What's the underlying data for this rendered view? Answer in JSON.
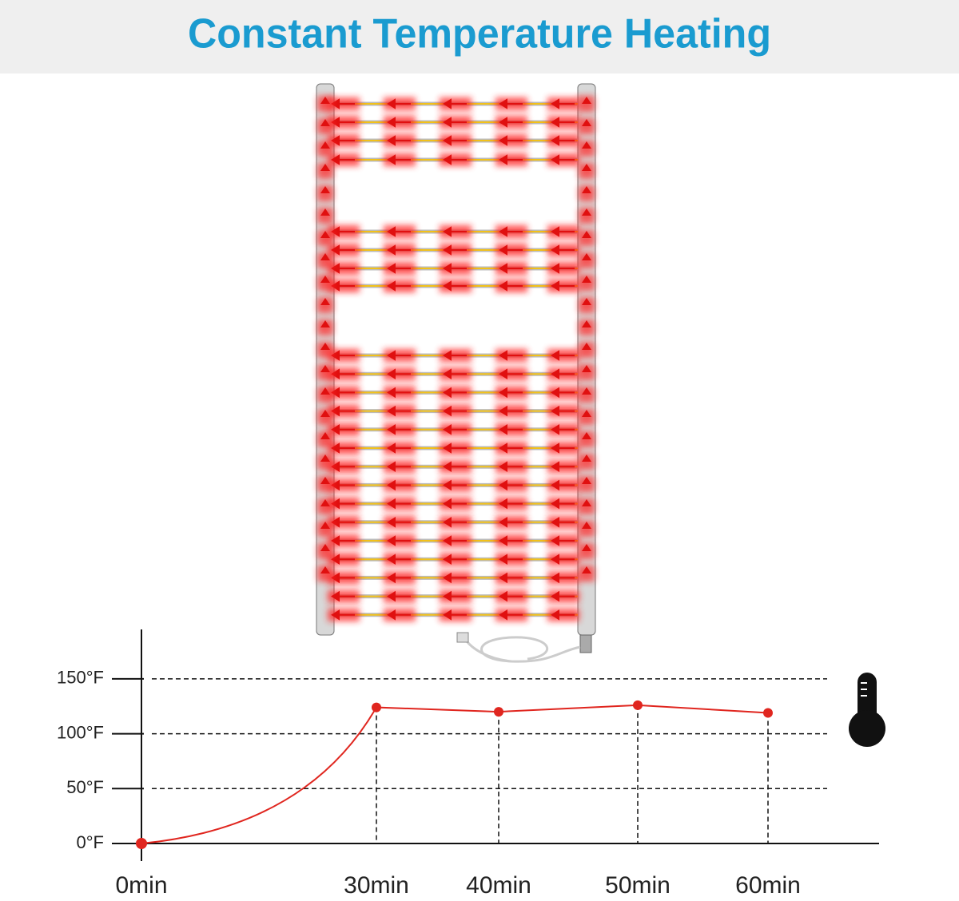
{
  "chart_data": {
    "type": "line",
    "title": "Constant Temperature Heating",
    "categories": [
      "0min",
      "30min",
      "40min",
      "50min",
      "60min"
    ],
    "values": [
      0,
      124,
      120,
      126,
      119
    ],
    "color": "#e0261f",
    "ylim": [
      0,
      195
    ],
    "yticks": [
      {
        "value": 0,
        "label": "0°F"
      },
      {
        "value": 50,
        "label": "50°F"
      },
      {
        "value": 100,
        "label": "100°F"
      },
      {
        "value": 150,
        "label": "150°F"
      }
    ],
    "grid": true
  }
}
